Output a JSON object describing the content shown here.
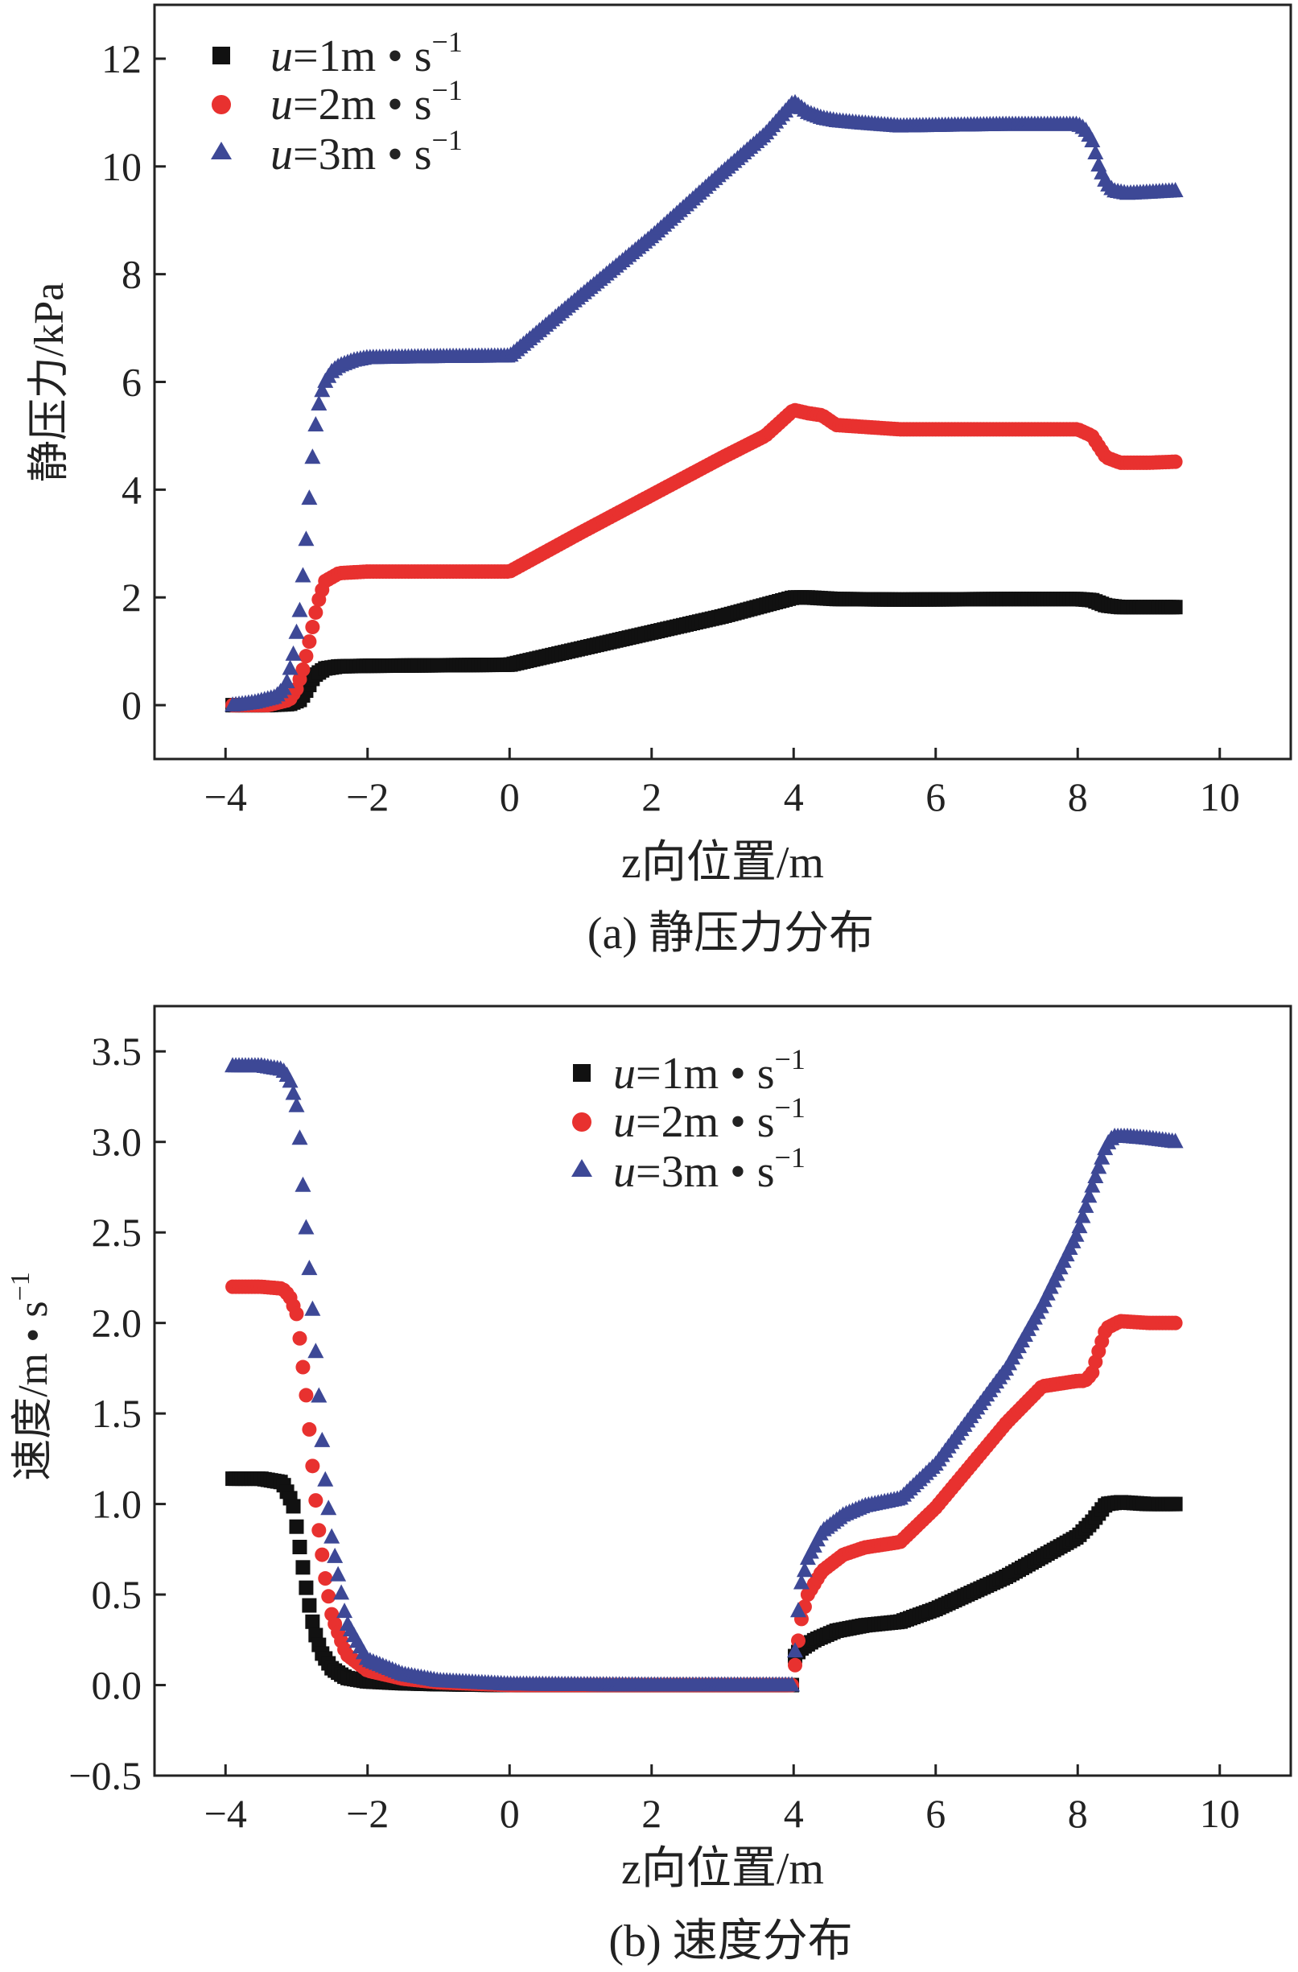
{
  "colors": {
    "s1": "#111111",
    "s2": "#e8312f",
    "s3": "#3d4896",
    "axis": "#222222"
  },
  "chart_data": [
    {
      "type": "scatter",
      "xlabel": "z向位置/m",
      "ylabel": "静压力/kPa",
      "caption": "(a) 静压力分布",
      "xlim": [
        -5,
        11
      ],
      "ylim": [
        -1,
        13
      ],
      "xticks": [
        -4,
        -2,
        0,
        2,
        4,
        6,
        8,
        10
      ],
      "xtick_labels": [
        "−4",
        "−2",
        "0",
        "2",
        "4",
        "6",
        "8",
        "10"
      ],
      "yticks": [
        0,
        2,
        4,
        6,
        8,
        10,
        12
      ],
      "ytick_labels": [
        "0",
        "2",
        "4",
        "6",
        "8",
        "10",
        "12"
      ],
      "legend_position": "top-left",
      "series": [
        {
          "name": "u=1m • s−1",
          "legend": {
            "var": "u",
            "eq": "=1m • s",
            "exp": "−1"
          },
          "marker": "square",
          "color_key": "s1",
          "x": [
            -3.9,
            -3.4,
            -3.1,
            -2.95,
            -2.85,
            -2.75,
            -2.6,
            -2.4,
            -2.0,
            -1.0,
            0,
            1.0,
            2.0,
            3.0,
            4.0,
            4.2,
            4.6,
            5.5,
            7.0,
            8.0,
            8.2,
            8.4,
            8.6,
            9.0,
            9.4
          ],
          "y": [
            0,
            0,
            0.02,
            0.1,
            0.3,
            0.55,
            0.68,
            0.72,
            0.73,
            0.74,
            0.75,
            1.05,
            1.35,
            1.65,
            2.0,
            2.0,
            1.97,
            1.96,
            1.97,
            1.97,
            1.95,
            1.85,
            1.82,
            1.82,
            1.82
          ]
        },
        {
          "name": "u=2m • s−1",
          "legend": {
            "var": "u",
            "eq": "=2m • s",
            "exp": "−1"
          },
          "marker": "circle",
          "color_key": "s2",
          "x": [
            -3.9,
            -3.4,
            -3.1,
            -3.0,
            -2.9,
            -2.8,
            -2.7,
            -2.6,
            -2.4,
            -2.0,
            -1.0,
            0,
            1.0,
            2.0,
            3.0,
            3.6,
            4.0,
            4.2,
            4.4,
            4.6,
            5.5,
            7.0,
            8.0,
            8.2,
            8.4,
            8.6,
            9.0,
            9.4
          ],
          "y": [
            0,
            0,
            0.1,
            0.3,
            0.7,
            1.3,
            1.9,
            2.3,
            2.45,
            2.48,
            2.48,
            2.48,
            3.2,
            3.9,
            4.6,
            5.0,
            5.48,
            5.42,
            5.38,
            5.2,
            5.12,
            5.12,
            5.12,
            5.0,
            4.6,
            4.5,
            4.5,
            4.52
          ]
        },
        {
          "name": "u=3m • s−1",
          "legend": {
            "var": "u",
            "eq": "=3m • s",
            "exp": "−1"
          },
          "marker": "triangle",
          "color_key": "s3",
          "x": [
            -3.9,
            -3.6,
            -3.3,
            -3.15,
            -3.05,
            -2.95,
            -2.85,
            -2.8,
            -2.75,
            -2.7,
            -2.65,
            -2.6,
            -2.5,
            -2.4,
            -2.2,
            -2.0,
            -1.0,
            0,
            1.0,
            2.0,
            3.0,
            3.6,
            4.0,
            4.2,
            4.4,
            4.6,
            5.0,
            5.5,
            7.0,
            8.0,
            8.1,
            8.2,
            8.3,
            8.4,
            8.5,
            8.7,
            9.0,
            9.4
          ],
          "y": [
            0,
            0.05,
            0.15,
            0.35,
            0.9,
            1.8,
            3.3,
            4.2,
            5.0,
            5.5,
            5.8,
            6.0,
            6.2,
            6.3,
            6.4,
            6.45,
            6.47,
            6.48,
            7.6,
            8.7,
            9.9,
            10.6,
            11.2,
            11.0,
            10.9,
            10.85,
            10.8,
            10.75,
            10.78,
            10.78,
            10.7,
            10.5,
            10.0,
            9.7,
            9.55,
            9.5,
            9.52,
            9.55
          ]
        }
      ]
    },
    {
      "type": "scatter",
      "xlabel": "z向位置/m",
      "ylabel": "速度/m • s−1",
      "ylabel_parts": {
        "main": "速度/m • s",
        "exp": "−1"
      },
      "caption": "(b) 速度分布",
      "xlim": [
        -5,
        11
      ],
      "ylim": [
        -0.5,
        3.75
      ],
      "xticks": [
        -4,
        -2,
        0,
        2,
        4,
        6,
        8,
        10
      ],
      "xtick_labels": [
        "−4",
        "−2",
        "0",
        "2",
        "4",
        "6",
        "8",
        "10"
      ],
      "yticks": [
        -0.5,
        0,
        0.5,
        1.0,
        1.5,
        2.0,
        2.5,
        3.0,
        3.5
      ],
      "ytick_labels": [
        "−0.5",
        "0.0",
        "0.5",
        "1.0",
        "1.5",
        "2.0",
        "2.5",
        "3.0",
        "3.5"
      ],
      "legend_position": "top-center",
      "series": [
        {
          "name": "u=1m • s−1",
          "legend": {
            "var": "u",
            "eq": "=1m • s",
            "exp": "−1"
          },
          "marker": "square",
          "color_key": "s1",
          "x": [
            -3.9,
            -3.5,
            -3.2,
            -3.05,
            -2.95,
            -2.85,
            -2.75,
            -2.65,
            -2.5,
            -2.3,
            -2.0,
            -1.5,
            -1.0,
            0,
            2.0,
            3.99,
            4.0,
            4.1,
            4.3,
            4.6,
            5.0,
            5.5,
            6.0,
            7.0,
            8.0,
            8.2,
            8.4,
            8.6,
            9.0,
            9.4
          ],
          "y": [
            1.14,
            1.14,
            1.12,
            1.0,
            0.75,
            0.5,
            0.3,
            0.18,
            0.09,
            0.04,
            0.02,
            0.01,
            0.005,
            0,
            0,
            0,
            0.15,
            0.2,
            0.25,
            0.3,
            0.33,
            0.35,
            0.42,
            0.6,
            0.82,
            0.9,
            1.0,
            1.01,
            1.0,
            1.0
          ]
        },
        {
          "name": "u=2m • s−1",
          "legend": {
            "var": "u",
            "eq": "=2m • s",
            "exp": "−1"
          },
          "marker": "circle",
          "color_key": "s2",
          "x": [
            -3.9,
            -3.5,
            -3.2,
            -3.1,
            -3.0,
            -2.95,
            -2.9,
            -2.85,
            -2.8,
            -2.75,
            -2.7,
            -2.6,
            -2.5,
            -2.3,
            -2.0,
            -1.5,
            -1.0,
            0,
            2.0,
            3.99,
            4.0,
            4.05,
            4.1,
            4.2,
            4.4,
            4.7,
            5.0,
            5.5,
            6.0,
            7.0,
            7.5,
            8.0,
            8.1,
            8.2,
            8.3,
            8.4,
            8.6,
            9.0,
            9.4
          ],
          "y": [
            2.2,
            2.2,
            2.19,
            2.15,
            2.05,
            1.9,
            1.72,
            1.55,
            1.32,
            1.1,
            0.9,
            0.6,
            0.38,
            0.17,
            0.08,
            0.035,
            0.015,
            0,
            0,
            0,
            0.05,
            0.2,
            0.35,
            0.5,
            0.63,
            0.72,
            0.76,
            0.79,
            0.98,
            1.45,
            1.65,
            1.68,
            1.68,
            1.72,
            1.85,
            1.97,
            2.01,
            2.0,
            2.0
          ]
        },
        {
          "name": "u=3m • s−1",
          "legend": {
            "var": "u",
            "eq": "=3m • s",
            "exp": "−1"
          },
          "marker": "triangle",
          "color_key": "s3",
          "x": [
            -3.9,
            -3.5,
            -3.2,
            -3.1,
            -3.0,
            -2.95,
            -2.9,
            -2.85,
            -2.8,
            -2.75,
            -2.7,
            -2.65,
            -2.6,
            -2.5,
            -2.3,
            -2.0,
            -1.5,
            -1.0,
            0,
            2.0,
            3.99,
            4.0,
            4.05,
            4.1,
            4.2,
            4.4,
            4.7,
            5.0,
            5.5,
            6.0,
            7.0,
            7.5,
            8.0,
            8.2,
            8.4,
            8.5,
            8.7,
            9.0,
            9.4
          ],
          "y": [
            3.42,
            3.42,
            3.4,
            3.35,
            3.2,
            3.0,
            2.7,
            2.45,
            2.2,
            1.95,
            1.68,
            1.4,
            1.15,
            0.8,
            0.35,
            0.14,
            0.06,
            0.025,
            0.005,
            0,
            0,
            0.08,
            0.35,
            0.55,
            0.7,
            0.85,
            0.94,
            0.99,
            1.03,
            1.22,
            1.75,
            2.1,
            2.5,
            2.75,
            2.98,
            3.03,
            3.03,
            3.02,
            3.0
          ]
        }
      ]
    }
  ]
}
